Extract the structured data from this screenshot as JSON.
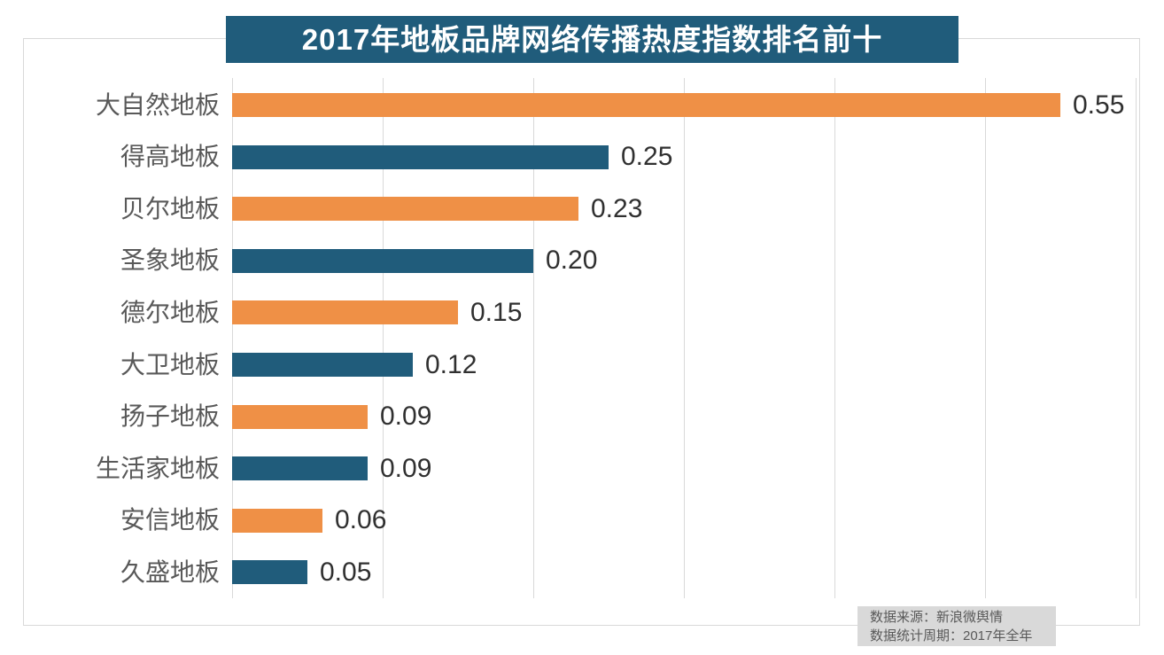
{
  "title": {
    "text": "2017年地板品牌网络传播热度指数排名前十"
  },
  "source_box": {
    "line1": "数据来源：新浪微舆情",
    "line2": "数据统计周期：2017年全年"
  },
  "colors": {
    "title_bg": "#205C7B",
    "title_text": "#FFFFFF",
    "bar_orange": "#EF9046",
    "bar_teal": "#205C7B",
    "grid": "#D9D9D9",
    "frame": "#D9D9D9",
    "category_label": "#595959",
    "value_label": "#303030",
    "source_bg": "#D9D9D9",
    "source_text": "#595959",
    "background": "#FFFFFF"
  },
  "chart_data": {
    "type": "bar",
    "orientation": "horizontal",
    "title": "2017年地板品牌网络传播热度指数排名前十",
    "categories": [
      "大自然地板",
      "得高地板",
      "贝尔地板",
      "圣象地板",
      "德尔地板",
      "大卫地板",
      "扬子地板",
      "生活家地板",
      "安信地板",
      "久盛地板"
    ],
    "values": [
      0.55,
      0.25,
      0.23,
      0.2,
      0.15,
      0.12,
      0.09,
      0.09,
      0.06,
      0.05
    ],
    "value_labels": [
      "0.55",
      "0.25",
      "0.23",
      "0.20",
      "0.15",
      "0.12",
      "0.09",
      "0.09",
      "0.06",
      "0.05"
    ],
    "xlabel": "",
    "ylabel": "",
    "xlim": [
      0,
      0.6
    ],
    "gridline_values": [
      0,
      0.1,
      0.2,
      0.3,
      0.4,
      0.5,
      0.6
    ],
    "grid": true,
    "legend": false,
    "bar_color_pattern": [
      "#EF9046",
      "#205C7B"
    ],
    "data_labels": true,
    "source_lines": [
      "数据来源：新浪微舆情",
      "数据统计周期：2017年全年"
    ]
  }
}
